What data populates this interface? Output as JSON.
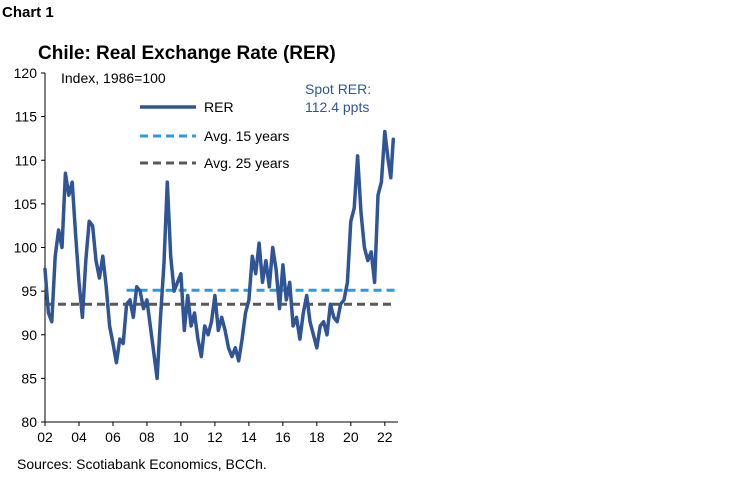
{
  "header": {
    "chart_number": "Chart 1"
  },
  "footer": {
    "source": "Sources: Scotiabank Economics, BCCh."
  },
  "chart_data": {
    "type": "line",
    "title": "Chile: Real Exchange Rate (RER)",
    "ylabel": "Index, 1986=100",
    "annotation": [
      "Spot RER:",
      "112.4 ppts"
    ],
    "ylim": [
      80,
      120
    ],
    "yticks": [
      80,
      85,
      90,
      95,
      100,
      105,
      110,
      115,
      120
    ],
    "xlim": [
      2002.0,
      2022.6
    ],
    "xticks": [
      "02",
      "04",
      "06",
      "08",
      "10",
      "12",
      "14",
      "16",
      "18",
      "20",
      "22"
    ],
    "xtick_years": [
      2002,
      2004,
      2006,
      2008,
      2010,
      2012,
      2014,
      2016,
      2018,
      2020,
      2022
    ],
    "grid": false,
    "legend_position": "top-left",
    "colors": {
      "rer": "#2f5597",
      "avg15": "#2e9bd6",
      "avg25": "#595959"
    },
    "series": [
      {
        "name": "RER",
        "style": "solid",
        "points": [
          [
            2002.0,
            97.5
          ],
          [
            2002.2,
            92.5
          ],
          [
            2002.4,
            91.5
          ],
          [
            2002.6,
            99.0
          ],
          [
            2002.8,
            102.0
          ],
          [
            2003.0,
            100.0
          ],
          [
            2003.2,
            108.5
          ],
          [
            2003.4,
            106.0
          ],
          [
            2003.6,
            107.5
          ],
          [
            2003.8,
            101.5
          ],
          [
            2004.0,
            96.0
          ],
          [
            2004.2,
            92.0
          ],
          [
            2004.4,
            98.5
          ],
          [
            2004.6,
            103.0
          ],
          [
            2004.8,
            102.5
          ],
          [
            2005.0,
            98.5
          ],
          [
            2005.2,
            96.5
          ],
          [
            2005.4,
            99.0
          ],
          [
            2005.6,
            95.5
          ],
          [
            2005.8,
            91.0
          ],
          [
            2006.0,
            89.0
          ],
          [
            2006.2,
            86.8
          ],
          [
            2006.4,
            89.5
          ],
          [
            2006.6,
            89.0
          ],
          [
            2006.8,
            93.5
          ],
          [
            2007.0,
            94.0
          ],
          [
            2007.2,
            92.0
          ],
          [
            2007.4,
            95.5
          ],
          [
            2007.6,
            95.0
          ],
          [
            2007.8,
            93.0
          ],
          [
            2008.0,
            94.0
          ],
          [
            2008.2,
            91.0
          ],
          [
            2008.4,
            88.0
          ],
          [
            2008.6,
            85.0
          ],
          [
            2008.8,
            92.0
          ],
          [
            2009.0,
            98.0
          ],
          [
            2009.2,
            107.5
          ],
          [
            2009.4,
            99.0
          ],
          [
            2009.6,
            95.0
          ],
          [
            2009.8,
            96.0
          ],
          [
            2010.0,
            97.0
          ],
          [
            2010.2,
            90.5
          ],
          [
            2010.4,
            94.5
          ],
          [
            2010.6,
            91.0
          ],
          [
            2010.8,
            92.5
          ],
          [
            2011.0,
            89.5
          ],
          [
            2011.2,
            87.5
          ],
          [
            2011.4,
            91.0
          ],
          [
            2011.6,
            90.0
          ],
          [
            2011.8,
            91.5
          ],
          [
            2012.0,
            94.5
          ],
          [
            2012.2,
            90.5
          ],
          [
            2012.4,
            92.0
          ],
          [
            2012.6,
            90.5
          ],
          [
            2012.8,
            88.5
          ],
          [
            2013.0,
            87.5
          ],
          [
            2013.2,
            88.5
          ],
          [
            2013.4,
            87.0
          ],
          [
            2013.6,
            89.5
          ],
          [
            2013.8,
            92.5
          ],
          [
            2014.0,
            94.0
          ],
          [
            2014.2,
            99.0
          ],
          [
            2014.4,
            97.0
          ],
          [
            2014.6,
            100.5
          ],
          [
            2014.8,
            96.0
          ],
          [
            2015.0,
            98.5
          ],
          [
            2015.2,
            95.5
          ],
          [
            2015.4,
            100.0
          ],
          [
            2015.6,
            97.5
          ],
          [
            2015.8,
            93.0
          ],
          [
            2016.0,
            98.0
          ],
          [
            2016.2,
            94.0
          ],
          [
            2016.4,
            96.0
          ],
          [
            2016.6,
            91.0
          ],
          [
            2016.8,
            92.0
          ],
          [
            2017.0,
            89.5
          ],
          [
            2017.2,
            92.5
          ],
          [
            2017.4,
            94.5
          ],
          [
            2017.6,
            91.5
          ],
          [
            2017.8,
            90.0
          ],
          [
            2018.0,
            88.5
          ],
          [
            2018.2,
            91.0
          ],
          [
            2018.4,
            91.5
          ],
          [
            2018.6,
            90.0
          ],
          [
            2018.8,
            93.5
          ],
          [
            2019.0,
            92.0
          ],
          [
            2019.2,
            91.5
          ],
          [
            2019.4,
            93.5
          ],
          [
            2019.6,
            94.0
          ],
          [
            2019.8,
            96.0
          ],
          [
            2020.0,
            103.0
          ],
          [
            2020.2,
            104.5
          ],
          [
            2020.4,
            110.5
          ],
          [
            2020.6,
            104.0
          ],
          [
            2020.8,
            100.0
          ],
          [
            2021.0,
            98.5
          ],
          [
            2021.2,
            99.5
          ],
          [
            2021.4,
            96.0
          ],
          [
            2021.6,
            106.0
          ],
          [
            2021.8,
            107.5
          ],
          [
            2022.0,
            113.3
          ],
          [
            2022.2,
            110.0
          ],
          [
            2022.35,
            108.0
          ],
          [
            2022.5,
            112.4
          ]
        ]
      },
      {
        "name": "Avg. 15 years",
        "style": "dashed",
        "x_range": [
          2006.8,
          2022.6
        ],
        "value": 95.1
      },
      {
        "name": "Avg. 25 years",
        "style": "dashed",
        "x_range": [
          2002.0,
          2022.6
        ],
        "value": 93.5
      }
    ]
  }
}
